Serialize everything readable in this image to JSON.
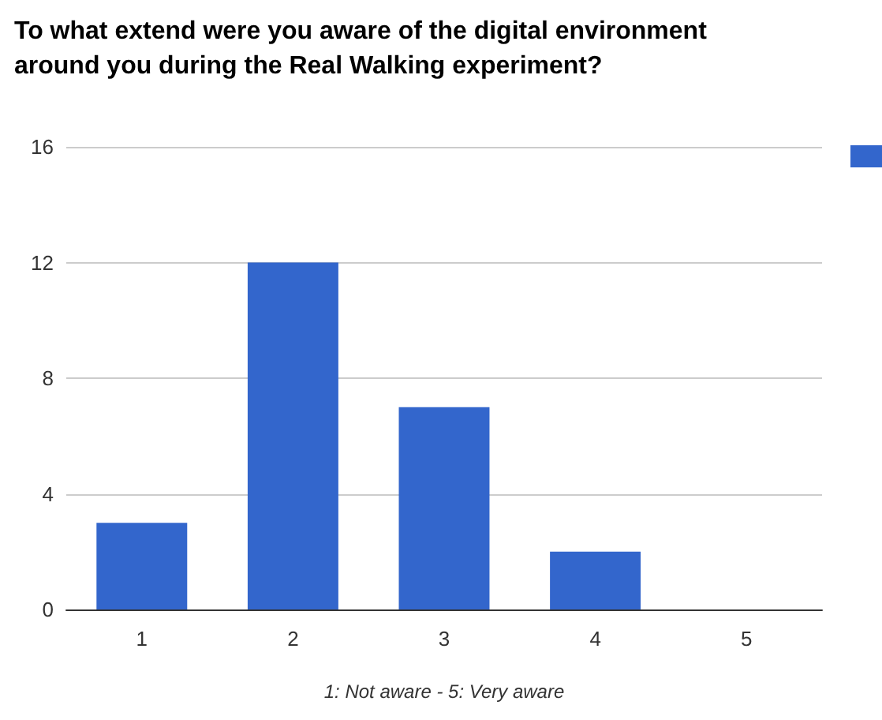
{
  "chart_data": {
    "type": "bar",
    "title": "To what extend were you aware of the digital environment around you during the Real Walking experiment?",
    "xlabel": "1: Not aware - 5: Very aware",
    "categories": [
      "1",
      "2",
      "3",
      "4",
      "5"
    ],
    "values": [
      3,
      12,
      7,
      2,
      0
    ],
    "color": "#3366cc",
    "ylim": [
      0,
      16
    ],
    "yticks": [
      0,
      4,
      8,
      12,
      16
    ],
    "grid": "y"
  }
}
